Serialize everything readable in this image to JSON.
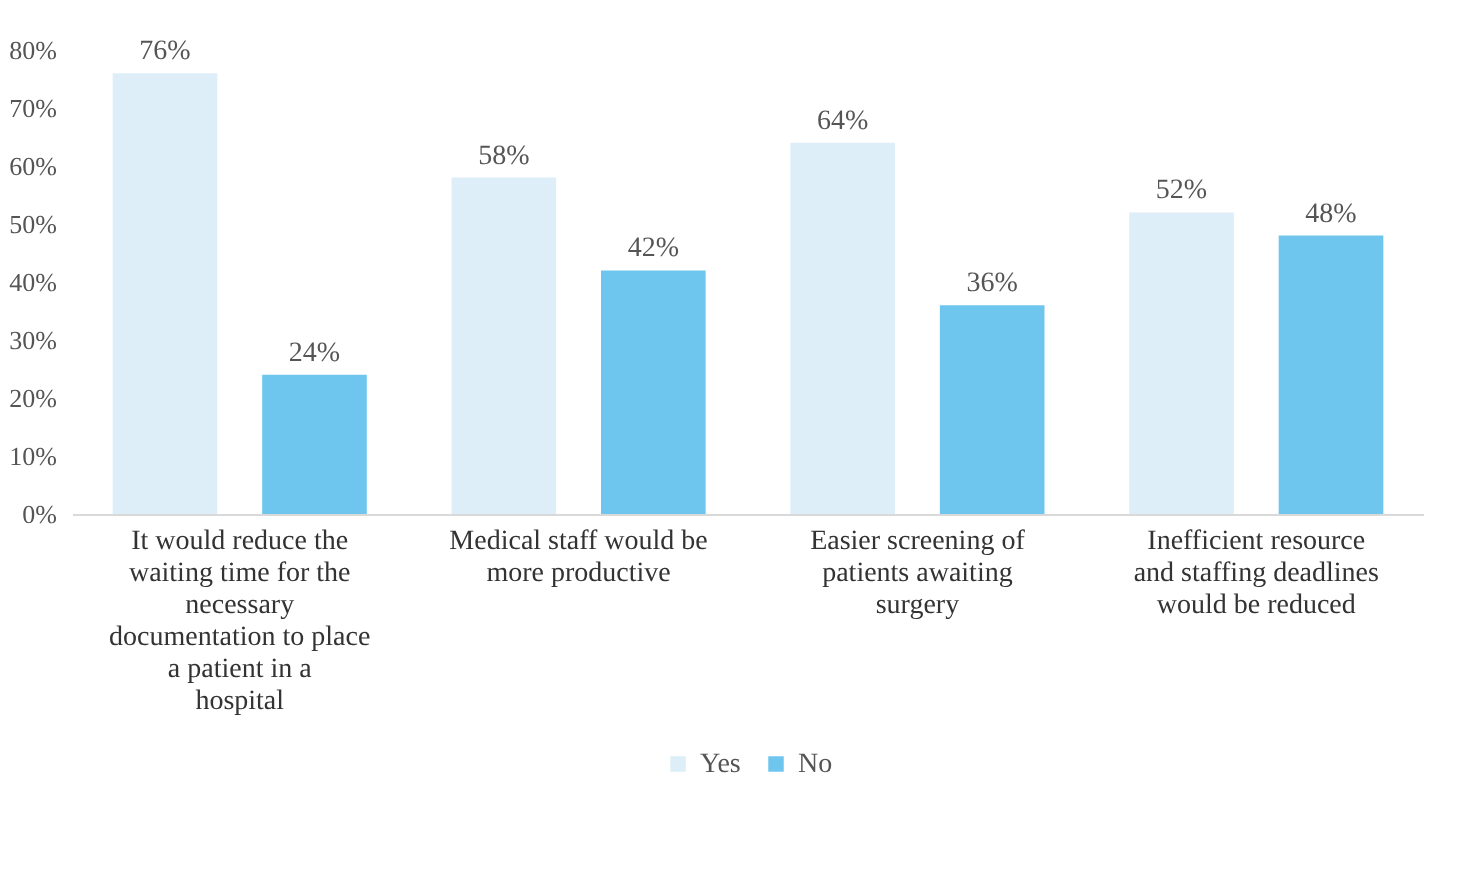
{
  "chart_data": {
    "type": "bar",
    "categories": [
      "It would reduce the waiting time for the necessary documentation to place a patient in a hospital",
      "Medical staff would be more productive",
      "Easier screening of patients awaiting surgery",
      "Inefficient resource and staffing deadlines would be reduced"
    ],
    "series": [
      {
        "name": "Yes",
        "color": "#ddeef9",
        "values": [
          76,
          58,
          64,
          52
        ],
        "value_labels": [
          "76%",
          "58%",
          "64%",
          "52%"
        ]
      },
      {
        "name": "No",
        "color": "#6ec6ee",
        "values": [
          24,
          42,
          36,
          48
        ],
        "value_labels": [
          "24%",
          "42%",
          "36%",
          "48%"
        ]
      }
    ],
    "ylim": [
      0,
      80
    ],
    "yticks": [
      {
        "value": 0,
        "label": "0%"
      },
      {
        "value": 10,
        "label": "10%"
      },
      {
        "value": 20,
        "label": "20%"
      },
      {
        "value": 30,
        "label": "30%"
      },
      {
        "value": 40,
        "label": "40%"
      },
      {
        "value": 50,
        "label": "50%"
      },
      {
        "value": 60,
        "label": "60%"
      },
      {
        "value": 70,
        "label": "70%"
      },
      {
        "value": 80,
        "label": "80%"
      }
    ],
    "grid": false,
    "legend": "bottom"
  }
}
